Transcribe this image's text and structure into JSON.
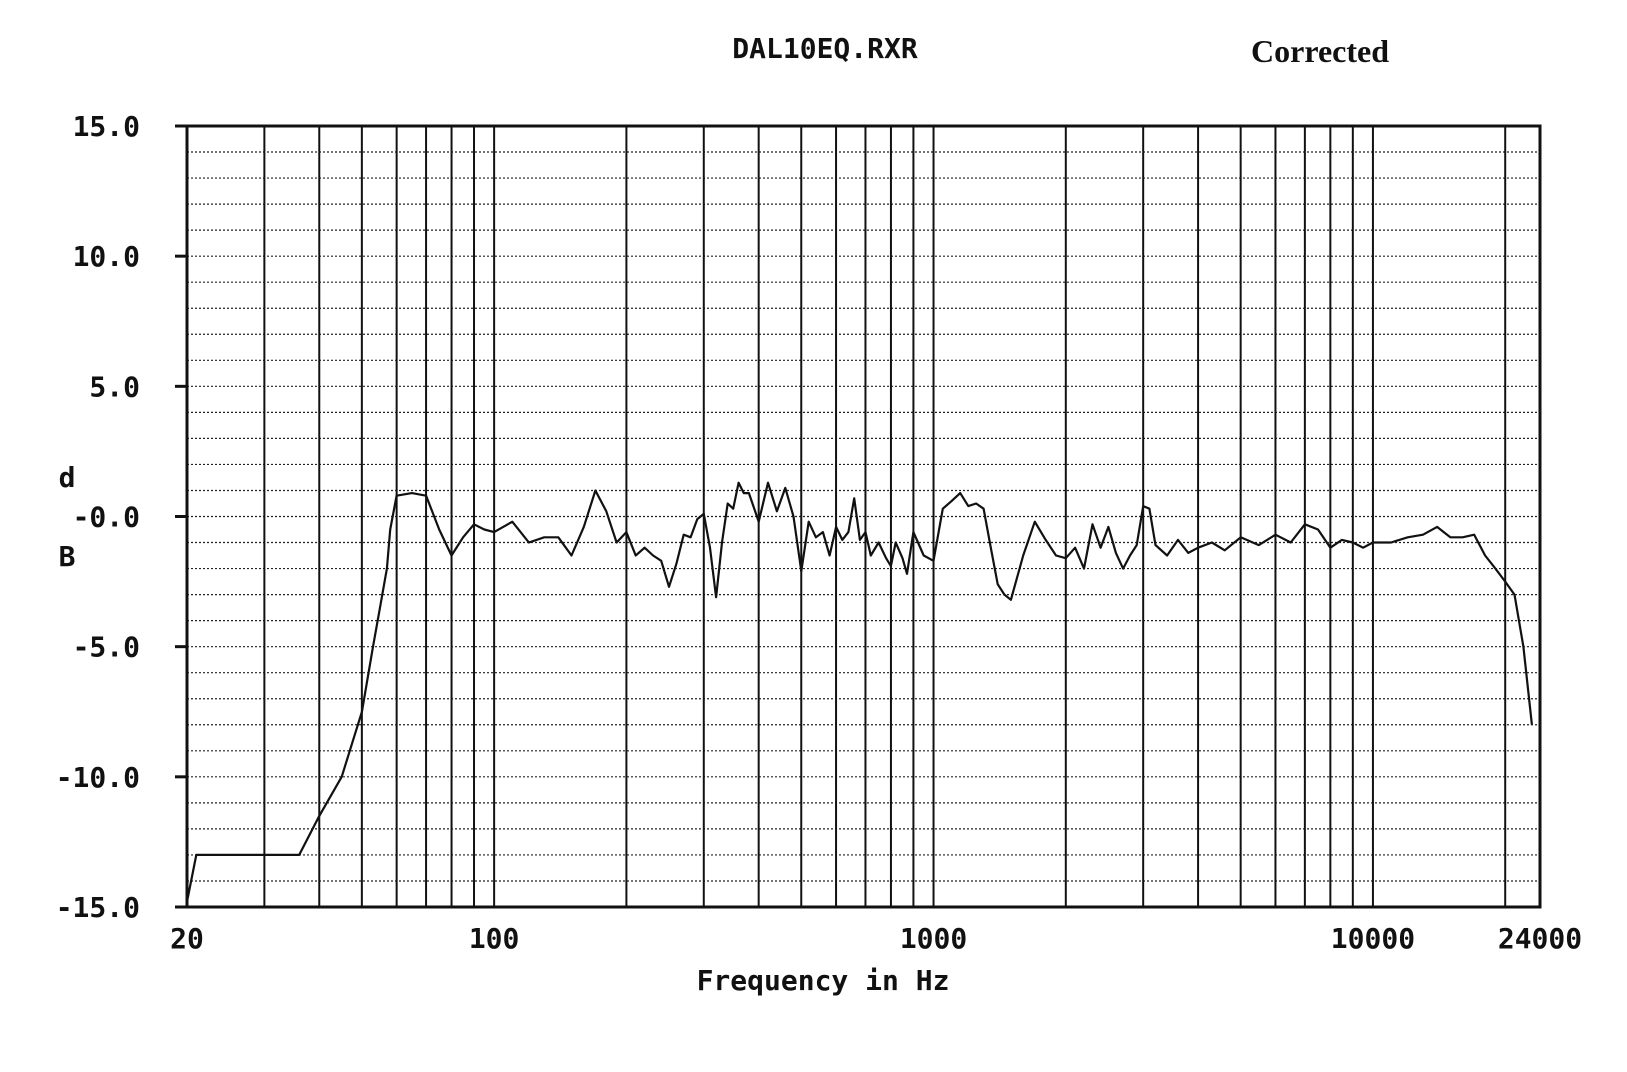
{
  "chart_data": {
    "type": "line",
    "title": "DAL10EQ.RXR",
    "annotation": "Corrected",
    "xlabel": "Frequency in Hz",
    "ylabel_chars": [
      "d",
      "B"
    ],
    "xscale": "log",
    "xlim": [
      20,
      24000
    ],
    "ylim": [
      -15,
      15
    ],
    "x_tick_labels": [
      {
        "value": 20,
        "label": "20"
      },
      {
        "value": 100,
        "label": "100"
      },
      {
        "value": 1000,
        "label": "1000"
      },
      {
        "value": 10000,
        "label": "10000"
      },
      {
        "value": 24000,
        "label": "24000"
      }
    ],
    "y_tick_labels": [
      {
        "value": 15,
        "label": "15.0"
      },
      {
        "value": 10,
        "label": "10.0"
      },
      {
        "value": 5,
        "label": "5.0"
      },
      {
        "value": 0,
        "label": "-0.0"
      },
      {
        "value": -5,
        "label": "-5.0"
      },
      {
        "value": -10,
        "label": "-10.0"
      },
      {
        "value": -15,
        "label": "-15.0"
      }
    ],
    "grid": true,
    "series": [
      {
        "color": "#111111",
        "x": [
          20,
          21,
          23,
          25,
          27,
          30,
          36,
          40,
          45,
          50,
          53,
          55,
          57,
          58,
          60,
          65,
          70,
          75,
          80,
          85,
          90,
          95,
          100,
          110,
          120,
          130,
          140,
          150,
          160,
          170,
          180,
          190,
          200,
          210,
          220,
          230,
          240,
          250,
          260,
          270,
          280,
          290,
          300,
          310,
          320,
          330,
          340,
          350,
          360,
          370,
          380,
          400,
          420,
          440,
          460,
          480,
          500,
          520,
          540,
          560,
          580,
          600,
          620,
          640,
          660,
          680,
          700,
          720,
          750,
          780,
          800,
          820,
          850,
          870,
          900,
          950,
          1000,
          1050,
          1100,
          1150,
          1200,
          1250,
          1300,
          1350,
          1400,
          1450,
          1500,
          1600,
          1700,
          1800,
          1900,
          2000,
          2100,
          2200,
          2300,
          2400,
          2500,
          2600,
          2700,
          2800,
          2900,
          3000,
          3100,
          3200,
          3400,
          3600,
          3800,
          4000,
          4300,
          4600,
          5000,
          5500,
          6000,
          6500,
          7000,
          7500,
          8000,
          8500,
          9000,
          9500,
          10000,
          11000,
          12000,
          13000,
          14000,
          15000,
          16000,
          17000,
          18000,
          19000,
          20000,
          21000,
          22000,
          23000
        ],
        "y": [
          -14.8,
          -13,
          -13,
          -13,
          -13,
          -13,
          -13,
          -11.5,
          -10,
          -7.5,
          -5,
          -3.5,
          -2,
          -0.5,
          0.8,
          0.9,
          0.8,
          -0.5,
          -1.5,
          -0.8,
          -0.3,
          -0.5,
          -0.6,
          -0.2,
          -1.0,
          -0.8,
          -0.8,
          -1.5,
          -0.4,
          1.0,
          0.2,
          -1.0,
          -0.6,
          -1.5,
          -1.2,
          -1.5,
          -1.7,
          -2.7,
          -1.8,
          -0.7,
          -0.8,
          -0.1,
          0.1,
          -1.2,
          -3.1,
          -1.0,
          0.5,
          0.3,
          1.3,
          0.9,
          0.9,
          -0.2,
          1.3,
          0.2,
          1.1,
          0.0,
          -2.1,
          -0.2,
          -0.8,
          -0.6,
          -1.5,
          -0.4,
          -0.9,
          -0.6,
          0.7,
          -0.9,
          -0.6,
          -1.5,
          -1.0,
          -1.6,
          -1.9,
          -1.0,
          -1.6,
          -2.2,
          -0.6,
          -1.5,
          -1.7,
          0.3,
          0.6,
          0.9,
          0.4,
          0.5,
          0.3,
          -1.2,
          -2.6,
          -3.0,
          -3.2,
          -1.5,
          -0.2,
          -0.9,
          -1.5,
          -1.6,
          -1.2,
          -2.0,
          -0.3,
          -1.2,
          -0.4,
          -1.4,
          -2.0,
          -1.5,
          -1.1,
          0.4,
          0.3,
          -1.1,
          -1.5,
          -0.9,
          -1.4,
          -1.2,
          -1.0,
          -1.3,
          -0.8,
          -1.1,
          -0.7,
          -1.0,
          -0.3,
          -0.5,
          -1.2,
          -0.9,
          -1.0,
          -1.2,
          -1.0,
          -1.0,
          -0.8,
          -0.7,
          -0.4,
          -0.8,
          -0.8,
          -0.7,
          -1.5,
          -2.0,
          -2.5,
          -3.0,
          -5.0,
          -8.0
        ]
      }
    ]
  }
}
